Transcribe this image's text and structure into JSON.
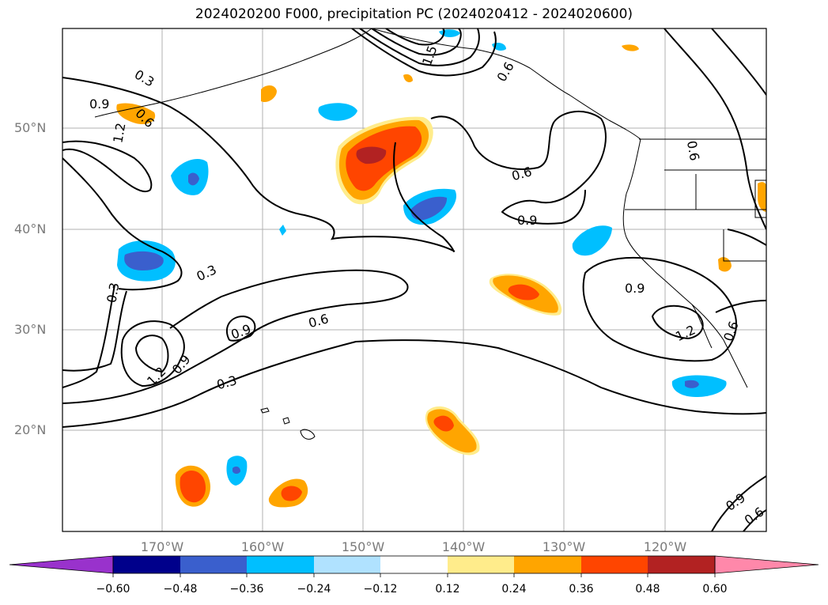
{
  "title": "2024020200 F000, precipitation PC (2024020412 - 2024020600)",
  "lat_labels": [
    "50°N",
    "40°N",
    "30°N",
    "20°N"
  ],
  "lon_labels": [
    "170°W",
    "160°W",
    "150°W",
    "140°W",
    "130°W",
    "120°W"
  ],
  "contour_labels": [
    "0.3",
    "0.9",
    "0.6",
    "1.2",
    "1.5",
    "0.6",
    "0.9",
    "0.3",
    "0.9",
    "0.6",
    "0.3",
    "0.9",
    "1.2",
    "0.9",
    "1.2",
    "0.6",
    "0.3",
    "0.6",
    "0.6",
    "0.6",
    "0.9"
  ],
  "colorbar": {
    "ticks": [
      "−0.60",
      "−0.48",
      "−0.36",
      "−0.24",
      "−0.12",
      "0.12",
      "0.24",
      "0.36",
      "0.48",
      "0.60"
    ],
    "colors": [
      "#9932cc",
      "#00008b",
      "#3a5fcd",
      "#00bfff",
      "#b0e2ff",
      "#ffffff",
      "#ffec8b",
      "#ffa500",
      "#ff4500",
      "#b22222",
      "#ff88aa"
    ]
  },
  "fill_colors": {
    "orange": "#ffa500",
    "red_orange": "#ff4500",
    "dark_red": "#b22222",
    "yellow": "#ffec8b",
    "light_blue": "#b0e2ff",
    "cyan": "#00bfff",
    "blue": "#3a5fcd"
  }
}
